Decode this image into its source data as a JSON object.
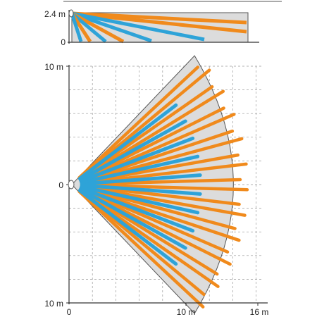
{
  "side_view": {
    "height_label": "2.4 m",
    "zero_label": "0"
  },
  "top_view": {
    "y_top_label": "10 m",
    "y_mid_label": "0",
    "y_bottom_label": "10 m",
    "x_labels": [
      "0",
      "10 m",
      "16 m"
    ]
  },
  "beams": {
    "long_angles_deg": [
      -40,
      -32,
      -24,
      -16,
      -8,
      0,
      8,
      16,
      24,
      32,
      40
    ],
    "long_range_m": 15.0,
    "short_angles_deg": [
      -36,
      -28,
      -20,
      -12,
      -4,
      4,
      12,
      20,
      28,
      36
    ],
    "short_range_m": 11.0
  },
  "colors": {
    "long_zone": "#f08a1c",
    "short_zone": "#2ea3d8",
    "coverage_fill": "#dcdcdc",
    "grid": "#999999",
    "axis": "#333333"
  }
}
